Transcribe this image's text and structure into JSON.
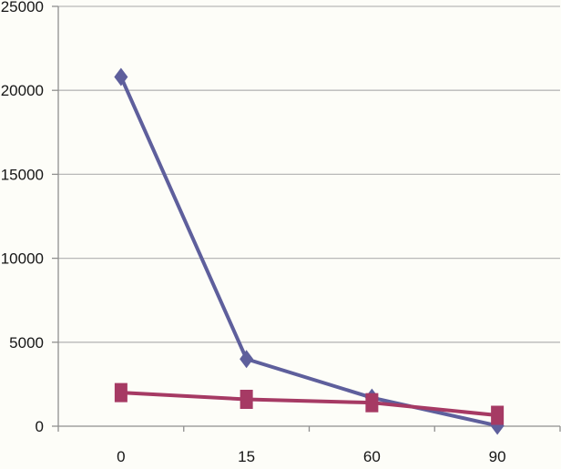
{
  "chart_data": {
    "type": "line",
    "title": "",
    "xlabel": "",
    "ylabel": "",
    "categories": [
      "0",
      "15",
      "60",
      "90"
    ],
    "series": [
      {
        "name": "series-1",
        "marker": "diamond",
        "color": "#5e5f9c",
        "values": [
          20800,
          4000,
          1700,
          30
        ]
      },
      {
        "name": "series-2",
        "marker": "square",
        "color": "#a63a64",
        "values": [
          2000,
          1600,
          1400,
          650
        ]
      }
    ],
    "ylim": [
      0,
      25000
    ],
    "y_ticks": [
      0,
      5000,
      10000,
      15000,
      20000,
      25000
    ],
    "y_tick_labels": [
      "0",
      "5000",
      "10000",
      "15000",
      "20000",
      "25000"
    ],
    "grid": "horizontal-only",
    "legend": "none",
    "colors": {
      "background": "#fdfdf8",
      "gridline": "#b8b8b8",
      "axis": "#8f8f8f",
      "tick_text": "#161616"
    }
  }
}
